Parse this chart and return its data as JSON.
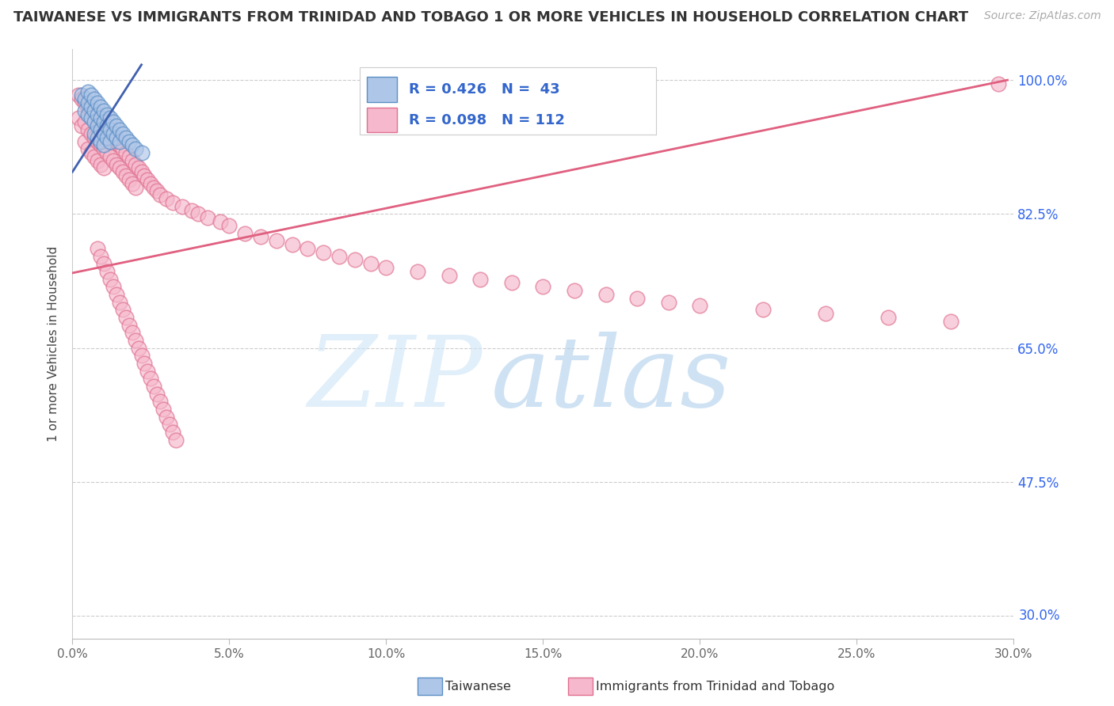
{
  "title": "TAIWANESE VS IMMIGRANTS FROM TRINIDAD AND TOBAGO 1 OR MORE VEHICLES IN HOUSEHOLD CORRELATION CHART",
  "source": "Source: ZipAtlas.com",
  "ylabel": "1 or more Vehicles in Household",
  "xlim": [
    0.0,
    0.3
  ],
  "ylim": [
    0.27,
    1.04
  ],
  "xtick_labels": [
    "0.0%",
    "5.0%",
    "10.0%",
    "15.0%",
    "20.0%",
    "25.0%",
    "30.0%"
  ],
  "xtick_vals": [
    0.0,
    0.05,
    0.1,
    0.15,
    0.2,
    0.25,
    0.3
  ],
  "ytick_right_labels": [
    "100.0%",
    "82.5%",
    "65.0%",
    "47.5%"
  ],
  "ytick_right_vals": [
    1.0,
    0.825,
    0.65,
    0.475
  ],
  "ytick_bottom_label": "30.0%",
  "ytick_bottom_val": 0.3,
  "taiwanese_fill": "#aec6e8",
  "taiwanese_edge": "#5b8ec4",
  "trinidad_fill": "#f5b8cc",
  "trinidad_edge": "#e07090",
  "taiwanese_line_color": "#4060b0",
  "trinidad_line_color": "#e06080",
  "legend_r_tw": "R = 0.426",
  "legend_n_tw": "N =  43",
  "legend_r_tr": "R = 0.098",
  "legend_n_tr": "N = 112",
  "legend_text_color": "#3366cc",
  "label_tw": "Taiwanese",
  "label_tr": "Immigrants from Trinidad and Tobago",
  "grid_color": "#cccccc",
  "right_label_color": "#3366ee",
  "bottom_label_color": "#3366ee",
  "title_fontsize": 13,
  "source_color": "#aaaaaa",
  "watermark_zip": "#cce5f8",
  "watermark_atlas": "#b0d4f0",
  "tw_x": [
    0.003,
    0.004,
    0.004,
    0.005,
    0.005,
    0.005,
    0.006,
    0.006,
    0.006,
    0.007,
    0.007,
    0.007,
    0.007,
    0.008,
    0.008,
    0.008,
    0.008,
    0.009,
    0.009,
    0.009,
    0.009,
    0.01,
    0.01,
    0.01,
    0.01,
    0.011,
    0.011,
    0.011,
    0.012,
    0.012,
    0.012,
    0.013,
    0.013,
    0.014,
    0.014,
    0.015,
    0.015,
    0.016,
    0.017,
    0.018,
    0.019,
    0.02,
    0.022
  ],
  "tw_y": [
    0.98,
    0.975,
    0.96,
    0.985,
    0.97,
    0.955,
    0.98,
    0.965,
    0.95,
    0.975,
    0.96,
    0.945,
    0.93,
    0.97,
    0.955,
    0.94,
    0.925,
    0.965,
    0.95,
    0.935,
    0.92,
    0.96,
    0.945,
    0.93,
    0.915,
    0.955,
    0.94,
    0.925,
    0.95,
    0.935,
    0.92,
    0.945,
    0.93,
    0.94,
    0.925,
    0.935,
    0.92,
    0.93,
    0.925,
    0.92,
    0.915,
    0.91,
    0.905
  ],
  "tr_x": [
    0.002,
    0.002,
    0.003,
    0.003,
    0.004,
    0.004,
    0.004,
    0.005,
    0.005,
    0.005,
    0.006,
    0.006,
    0.006,
    0.007,
    0.007,
    0.007,
    0.008,
    0.008,
    0.008,
    0.009,
    0.009,
    0.009,
    0.01,
    0.01,
    0.01,
    0.011,
    0.011,
    0.012,
    0.012,
    0.013,
    0.013,
    0.014,
    0.014,
    0.015,
    0.015,
    0.016,
    0.016,
    0.017,
    0.017,
    0.018,
    0.018,
    0.019,
    0.019,
    0.02,
    0.02,
    0.021,
    0.022,
    0.023,
    0.024,
    0.025,
    0.026,
    0.027,
    0.028,
    0.03,
    0.032,
    0.035,
    0.038,
    0.04,
    0.043,
    0.047,
    0.05,
    0.055,
    0.06,
    0.065,
    0.07,
    0.075,
    0.08,
    0.085,
    0.09,
    0.095,
    0.1,
    0.11,
    0.12,
    0.13,
    0.14,
    0.15,
    0.16,
    0.17,
    0.18,
    0.19,
    0.2,
    0.22,
    0.24,
    0.26,
    0.28,
    0.295,
    0.008,
    0.009,
    0.01,
    0.011,
    0.012,
    0.013,
    0.014,
    0.015,
    0.016,
    0.017,
    0.018,
    0.019,
    0.02,
    0.021,
    0.022,
    0.023,
    0.024,
    0.025,
    0.026,
    0.027,
    0.028,
    0.029,
    0.03,
    0.031,
    0.032,
    0.033
  ],
  "tr_y": [
    0.98,
    0.95,
    0.975,
    0.94,
    0.97,
    0.945,
    0.92,
    0.965,
    0.935,
    0.91,
    0.96,
    0.93,
    0.905,
    0.955,
    0.925,
    0.9,
    0.95,
    0.92,
    0.895,
    0.945,
    0.915,
    0.89,
    0.94,
    0.91,
    0.885,
    0.935,
    0.905,
    0.93,
    0.9,
    0.925,
    0.895,
    0.92,
    0.89,
    0.915,
    0.885,
    0.91,
    0.88,
    0.905,
    0.875,
    0.9,
    0.87,
    0.895,
    0.865,
    0.89,
    0.86,
    0.885,
    0.88,
    0.875,
    0.87,
    0.865,
    0.86,
    0.855,
    0.85,
    0.845,
    0.84,
    0.835,
    0.83,
    0.825,
    0.82,
    0.815,
    0.81,
    0.8,
    0.795,
    0.79,
    0.785,
    0.78,
    0.775,
    0.77,
    0.765,
    0.76,
    0.755,
    0.75,
    0.745,
    0.74,
    0.735,
    0.73,
    0.725,
    0.72,
    0.715,
    0.71,
    0.705,
    0.7,
    0.695,
    0.69,
    0.685,
    0.995,
    0.78,
    0.77,
    0.76,
    0.75,
    0.74,
    0.73,
    0.72,
    0.71,
    0.7,
    0.69,
    0.68,
    0.67,
    0.66,
    0.65,
    0.64,
    0.63,
    0.62,
    0.61,
    0.6,
    0.59,
    0.58,
    0.57,
    0.56,
    0.55,
    0.54,
    0.53
  ],
  "tr_line_x0": 0.0,
  "tr_line_x1": 0.298,
  "tr_line_y0": 0.748,
  "tr_line_y1": 1.0,
  "tw_line_x0": 0.0,
  "tw_line_x1": 0.022,
  "tw_line_y0": 0.88,
  "tw_line_y1": 1.02
}
